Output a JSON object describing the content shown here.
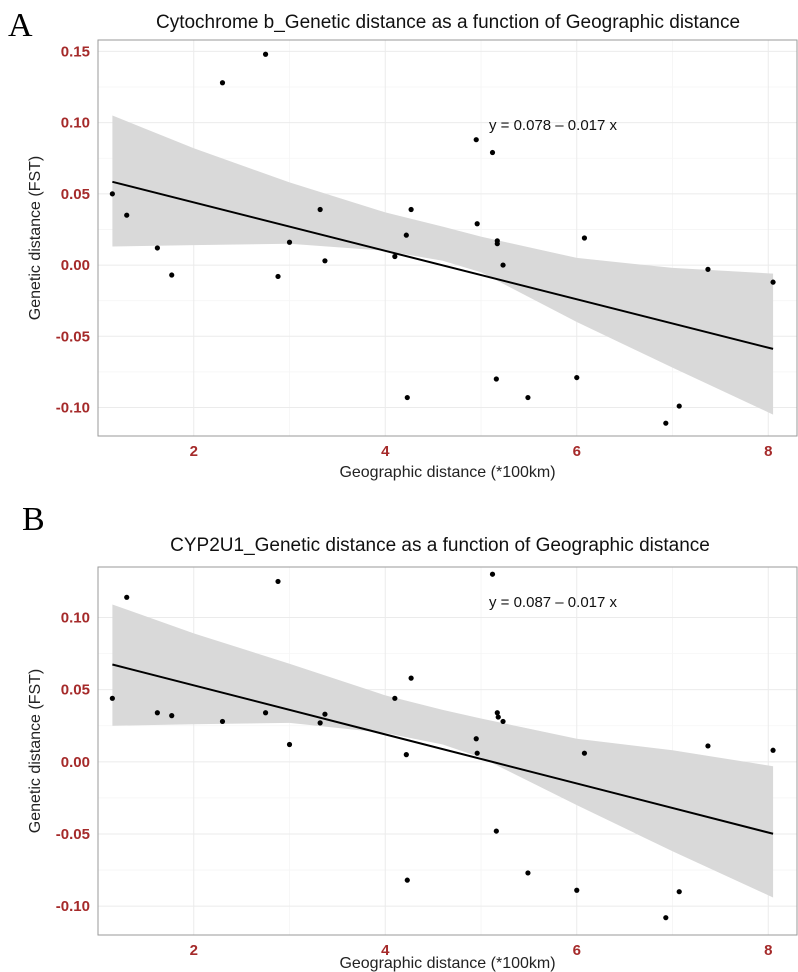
{
  "chart_data": [
    {
      "type": "scatter",
      "panel_letter": "A",
      "title": "Cytochrome b_Genetic distance as a function of Geographic distance",
      "xlabel": "Geographic distance (*100km)",
      "ylabel": "Genetic distance (FST)",
      "xlim": [
        1.0,
        8.3
      ],
      "ylim": [
        -0.12,
        0.158
      ],
      "xticks": [
        2,
        4,
        6,
        8
      ],
      "yticks": [
        0.15,
        0.1,
        0.05,
        0.0,
        -0.05,
        -0.1
      ],
      "xtick_labels": [
        "2",
        "4",
        "6",
        "8"
      ],
      "ytick_labels": [
        "0.15",
        "0.10",
        "0.05",
        "0.00",
        "-0.05",
        "-0.10"
      ],
      "equation": "y = 0.078 – 0.017 x",
      "fit": {
        "intercept": 0.078,
        "slope": -0.017,
        "x_range": [
          1.15,
          8.05
        ]
      },
      "confidence_band": {
        "x": [
          1.15,
          2.0,
          3.0,
          4.0,
          4.6,
          5.0,
          6.0,
          7.0,
          8.05
        ],
        "lower": [
          0.013,
          0.014,
          0.015,
          0.01,
          0.003,
          -0.005,
          -0.04,
          -0.072,
          -0.105
        ],
        "upper": [
          0.105,
          0.082,
          0.058,
          0.037,
          0.027,
          0.02,
          0.005,
          -0.002,
          -0.006
        ]
      },
      "grid": true,
      "points": {
        "x": [
          1.15,
          1.3,
          1.62,
          1.77,
          2.3,
          2.75,
          2.88,
          3.0,
          3.32,
          3.37,
          4.1,
          4.22,
          4.27,
          4.23,
          4.95,
          4.96,
          5.12,
          5.17,
          5.17,
          5.23,
          5.16,
          5.49,
          6.0,
          6.08,
          6.93,
          7.07,
          7.37,
          8.05
        ],
        "y": [
          0.05,
          0.035,
          0.012,
          -0.007,
          0.128,
          0.148,
          -0.008,
          0.016,
          0.039,
          0.003,
          0.006,
          0.021,
          0.039,
          -0.093,
          0.088,
          0.029,
          0.079,
          0.017,
          0.015,
          0.0,
          -0.08,
          -0.093,
          -0.079,
          0.019,
          -0.111,
          -0.099,
          -0.003,
          -0.012
        ]
      }
    },
    {
      "type": "scatter",
      "panel_letter": "B",
      "title": "CYP2U1_Genetic distance as a function of Geographic distance",
      "xlabel": "Geographic distance (*100km)",
      "ylabel": "Genetic distance (FST)",
      "xlim": [
        1.0,
        8.3
      ],
      "ylim": [
        -0.12,
        0.135
      ],
      "xticks": [
        2,
        4,
        6,
        8
      ],
      "yticks": [
        0.1,
        0.05,
        0.0,
        -0.05,
        -0.1
      ],
      "xtick_labels": [
        "2",
        "4",
        "6",
        "8"
      ],
      "ytick_labels": [
        "0.10",
        "0.05",
        "0.00",
        "-0.05",
        "-0.10"
      ],
      "equation": "y = 0.087 – 0.017 x",
      "fit": {
        "intercept": 0.087,
        "slope": -0.017,
        "x_range": [
          1.15,
          8.05
        ]
      },
      "confidence_band": {
        "x": [
          1.15,
          2.0,
          3.0,
          4.0,
          4.6,
          5.0,
          6.0,
          7.0,
          8.05
        ],
        "lower": [
          0.025,
          0.026,
          0.027,
          0.02,
          0.012,
          0.003,
          -0.03,
          -0.062,
          -0.094
        ],
        "upper": [
          0.109,
          0.089,
          0.068,
          0.046,
          0.036,
          0.03,
          0.016,
          0.008,
          -0.003
        ]
      },
      "grid": true,
      "points": {
        "x": [
          1.15,
          1.3,
          1.62,
          1.77,
          2.3,
          2.75,
          2.88,
          3.0,
          3.32,
          3.37,
          4.1,
          4.22,
          4.27,
          4.23,
          4.95,
          4.96,
          5.12,
          5.17,
          5.18,
          5.23,
          5.16,
          5.49,
          6.0,
          6.08,
          6.93,
          7.07,
          7.37,
          8.05
        ],
        "y": [
          0.044,
          0.114,
          0.034,
          0.032,
          0.028,
          0.034,
          0.125,
          0.012,
          0.027,
          0.033,
          0.044,
          0.005,
          0.058,
          -0.082,
          0.016,
          0.006,
          0.13,
          0.034,
          0.031,
          0.028,
          -0.048,
          -0.077,
          -0.089,
          0.006,
          -0.108,
          -0.09,
          0.011,
          0.008
        ]
      }
    }
  ]
}
